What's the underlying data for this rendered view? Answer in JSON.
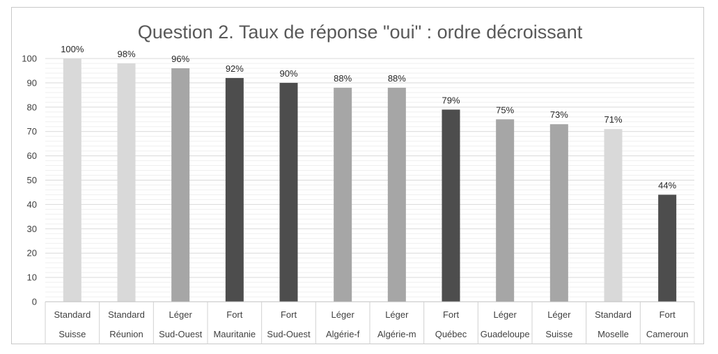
{
  "chart_data": {
    "type": "bar",
    "title": "Question 2. Taux de réponse \"oui\" : ordre décroissant",
    "xlabel": "",
    "ylabel": "",
    "ylim": [
      0,
      100
    ],
    "yticks": [
      0,
      10,
      20,
      30,
      40,
      50,
      60,
      70,
      80,
      90,
      100
    ],
    "grid": true,
    "legend": "none",
    "categories": [
      {
        "level": "Standard",
        "region": "Suisse"
      },
      {
        "level": "Standard",
        "region": "Réunion"
      },
      {
        "level": "Léger",
        "region": "Sud-Ouest"
      },
      {
        "level": "Fort",
        "region": "Mauritanie"
      },
      {
        "level": "Fort",
        "region": "Sud-Ouest"
      },
      {
        "level": "Léger",
        "region": "Algérie-f"
      },
      {
        "level": "Léger",
        "region": "Algérie-m"
      },
      {
        "level": "Fort",
        "region": "Québec"
      },
      {
        "level": "Léger",
        "region": "Guadeloupe"
      },
      {
        "level": "Léger",
        "region": "Suisse"
      },
      {
        "level": "Standard",
        "region": "Moselle"
      },
      {
        "level": "Fort",
        "region": "Cameroun"
      }
    ],
    "values": [
      100,
      98,
      96,
      92,
      90,
      88,
      88,
      79,
      75,
      73,
      71,
      44
    ],
    "data_labels": [
      "100%",
      "98%",
      "96%",
      "92%",
      "90%",
      "88%",
      "88%",
      "79%",
      "75%",
      "73%",
      "71%",
      "44%"
    ],
    "level_colors": {
      "Standard": "#d9d9d9",
      "Léger": "#a6a6a6",
      "Fort": "#4d4d4d"
    }
  }
}
